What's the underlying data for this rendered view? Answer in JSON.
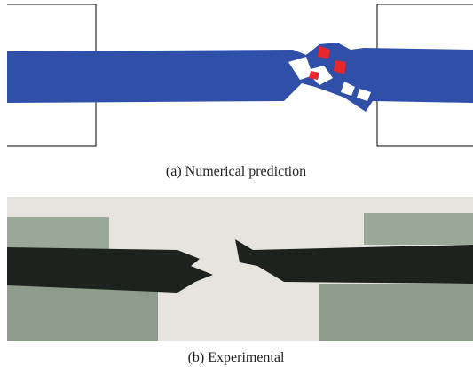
{
  "captions": {
    "a": "(a)  Numerical prediction",
    "b": "(b)  Experimental"
  }
}
